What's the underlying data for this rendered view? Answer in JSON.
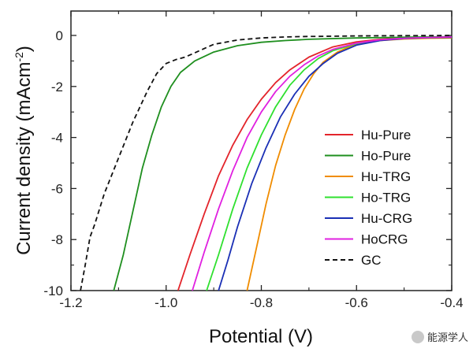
{
  "chart_data": {
    "type": "line",
    "xlabel": "Potential (V)",
    "ylabel_main": "Current density (mAcm",
    "ylabel_sup": "-2",
    "ylabel_close": ")",
    "xlim": [
      -1.2,
      -0.4
    ],
    "ylim": [
      -10,
      0.5
    ],
    "xticks": [
      -1.2,
      -1.0,
      -0.8,
      -0.6,
      -0.4
    ],
    "xtick_labels": [
      "-1.2",
      "-1.0",
      "-0.8",
      "-0.6",
      "-0.4"
    ],
    "yticks": [
      0,
      -2,
      -4,
      -6,
      -8,
      -10
    ],
    "ytick_labels": [
      "0",
      "-2",
      "-4",
      "-6",
      "-8",
      "-10"
    ],
    "legend_position": "lower-right",
    "series": [
      {
        "name": "Hu-Pure",
        "color": "#e3242b",
        "dash": "solid",
        "x": [
          -0.975,
          -0.95,
          -0.92,
          -0.89,
          -0.86,
          -0.83,
          -0.8,
          -0.77,
          -0.74,
          -0.7,
          -0.65,
          -0.6,
          -0.55,
          -0.5,
          -0.45,
          -0.4
        ],
        "y": [
          -10,
          -8.6,
          -7.0,
          -5.5,
          -4.3,
          -3.3,
          -2.5,
          -1.85,
          -1.35,
          -0.85,
          -0.45,
          -0.25,
          -0.15,
          -0.1,
          -0.08,
          -0.06
        ]
      },
      {
        "name": "Ho-Pure",
        "color": "#1f8f1f",
        "dash": "solid",
        "x": [
          -1.11,
          -1.09,
          -1.07,
          -1.05,
          -1.03,
          -1.01,
          -0.99,
          -0.97,
          -0.94,
          -0.9,
          -0.85,
          -0.8,
          -0.75,
          -0.7,
          -0.6,
          -0.5,
          -0.4
        ],
        "y": [
          -10,
          -8.6,
          -6.9,
          -5.2,
          -3.9,
          -2.8,
          -2.0,
          -1.45,
          -1.0,
          -0.65,
          -0.4,
          -0.27,
          -0.2,
          -0.15,
          -0.1,
          -0.07,
          -0.05
        ]
      },
      {
        "name": "Hu-TRG",
        "color": "#f08c00",
        "dash": "solid",
        "x": [
          -0.83,
          -0.81,
          -0.79,
          -0.77,
          -0.75,
          -0.73,
          -0.71,
          -0.69,
          -0.67,
          -0.64,
          -0.61,
          -0.58,
          -0.55,
          -0.5,
          -0.45,
          -0.4
        ],
        "y": [
          -10,
          -8.3,
          -6.6,
          -5.1,
          -3.9,
          -2.9,
          -2.1,
          -1.5,
          -1.05,
          -0.65,
          -0.4,
          -0.27,
          -0.2,
          -0.14,
          -0.11,
          -0.1
        ]
      },
      {
        "name": "Ho-TRG",
        "color": "#2fe02f",
        "dash": "solid",
        "x": [
          -0.915,
          -0.89,
          -0.86,
          -0.83,
          -0.8,
          -0.77,
          -0.74,
          -0.71,
          -0.68,
          -0.65,
          -0.6,
          -0.55,
          -0.5,
          -0.45,
          -0.4
        ],
        "y": [
          -10,
          -8.6,
          -6.8,
          -5.2,
          -3.9,
          -2.8,
          -1.95,
          -1.35,
          -0.9,
          -0.6,
          -0.32,
          -0.18,
          -0.12,
          -0.09,
          -0.07
        ]
      },
      {
        "name": "Hu-CRG",
        "color": "#1a2fb5",
        "dash": "solid",
        "x": [
          -0.89,
          -0.87,
          -0.85,
          -0.82,
          -0.79,
          -0.76,
          -0.73,
          -0.7,
          -0.67,
          -0.64,
          -0.6,
          -0.55,
          -0.5,
          -0.45,
          -0.4
        ],
        "y": [
          -10,
          -8.8,
          -7.5,
          -5.8,
          -4.4,
          -3.2,
          -2.3,
          -1.6,
          -1.1,
          -0.7,
          -0.38,
          -0.2,
          -0.12,
          -0.09,
          -0.07
        ]
      },
      {
        "name": "HoCRG",
        "color": "#e020e0",
        "dash": "solid",
        "x": [
          -0.945,
          -0.92,
          -0.89,
          -0.86,
          -0.83,
          -0.8,
          -0.77,
          -0.74,
          -0.71,
          -0.68,
          -0.65,
          -0.6,
          -0.55,
          -0.5,
          -0.45,
          -0.4
        ],
        "y": [
          -10,
          -8.5,
          -6.8,
          -5.3,
          -4.0,
          -3.0,
          -2.2,
          -1.6,
          -1.15,
          -0.8,
          -0.55,
          -0.3,
          -0.17,
          -0.11,
          -0.08,
          -0.06
        ]
      },
      {
        "name": "GC",
        "color": "#111111",
        "dash": "dashed",
        "x": [
          -1.18,
          -1.17,
          -1.16,
          -1.15,
          -1.13,
          -1.1,
          -1.07,
          -1.04,
          -1.02,
          -1.0,
          -0.98,
          -0.96,
          -0.93,
          -0.9,
          -0.85,
          -0.8,
          -0.75,
          -0.7,
          -0.65,
          -0.6,
          -0.5,
          -0.4
        ],
        "y": [
          -10,
          -9.0,
          -7.9,
          -7.4,
          -6.2,
          -4.8,
          -3.4,
          -2.2,
          -1.5,
          -1.1,
          -0.95,
          -0.85,
          -0.6,
          -0.35,
          -0.18,
          -0.1,
          -0.06,
          -0.04,
          -0.03,
          -0.02,
          -0.01,
          0.0
        ]
      }
    ]
  },
  "watermark": {
    "text": "能源学人"
  }
}
